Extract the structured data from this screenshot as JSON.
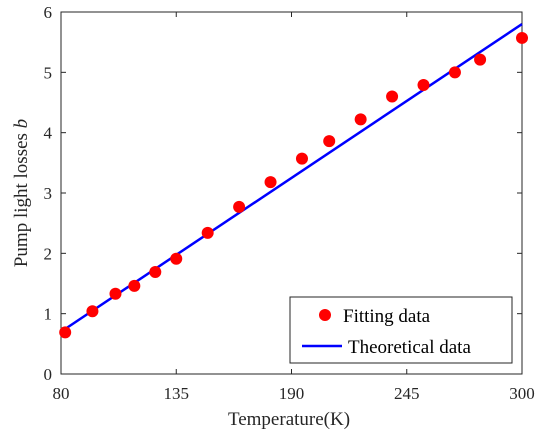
{
  "chart_data": {
    "type": "scatter",
    "xlabel": "Temperature(K)",
    "ylabel_main": "Pump light losses ",
    "ylabel_symbol": "b",
    "xlim": [
      80,
      300
    ],
    "ylim": [
      0,
      6
    ],
    "xticks": [
      80,
      135,
      190,
      245,
      300
    ],
    "yticks": [
      0,
      1,
      2,
      3,
      4,
      5,
      6
    ],
    "grid": false,
    "legend_position": "bottom-right",
    "series": [
      {
        "name": "Fitting data",
        "kind": "scatter",
        "color": "#ff0000",
        "x": [
          82,
          95,
          106,
          115,
          125,
          135,
          150,
          165,
          180,
          195,
          208,
          223,
          238,
          253,
          268,
          280,
          300
        ],
        "y": [
          0.69,
          1.04,
          1.33,
          1.46,
          1.69,
          1.91,
          2.34,
          2.77,
          3.18,
          3.57,
          3.86,
          4.22,
          4.6,
          4.79,
          5.0,
          5.21,
          5.57
        ]
      },
      {
        "name": "Theoretical data",
        "kind": "line",
        "color": "#0000ff",
        "x": [
          80,
          300
        ],
        "y": [
          0.7,
          5.8
        ]
      }
    ]
  }
}
